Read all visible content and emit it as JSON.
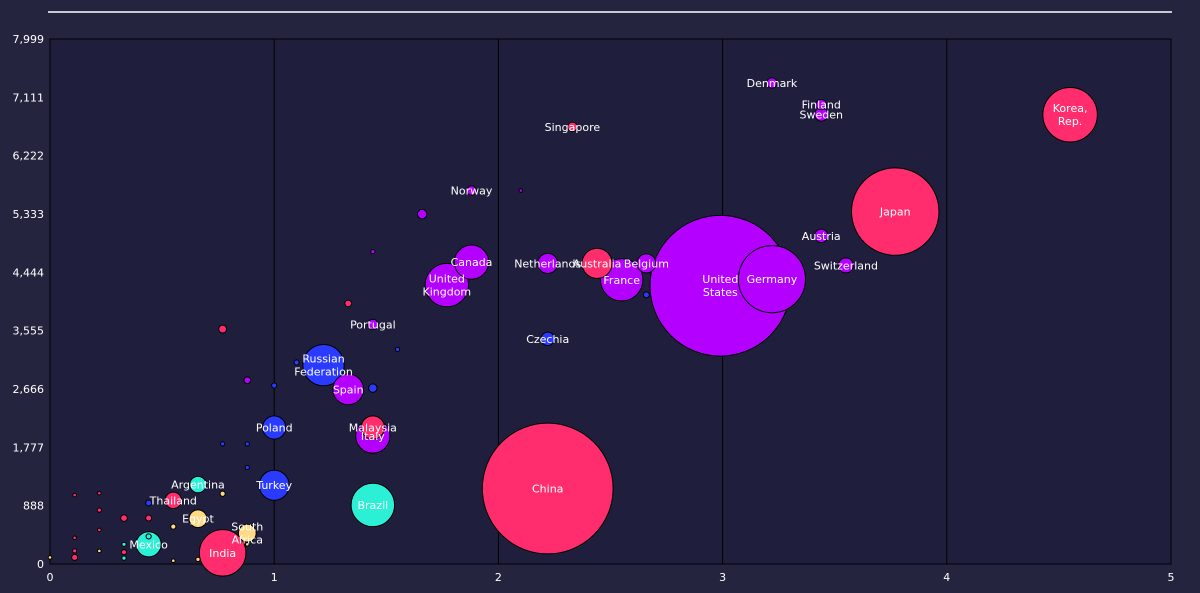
{
  "chart_data": {
    "type": "scatter",
    "title": "",
    "xlabel": "",
    "ylabel": "",
    "xlim": [
      0,
      5
    ],
    "ylim": [
      0,
      7999
    ],
    "x_ticks": [
      "0",
      "1",
      "2",
      "3",
      "4",
      "5"
    ],
    "y_ticks": [
      "0",
      "888",
      "1,777",
      "2,666",
      "3,555",
      "4,444",
      "5,333",
      "6,222",
      "7,111",
      "7,999"
    ],
    "grid": "vertical",
    "colors": {
      "background": "#24243f",
      "plot_background": "#1f1f3d",
      "line": "#ffffff",
      "magenta": "#ff2d6d",
      "purple": "#b400ff",
      "blue": "#2a3bff",
      "cyan": "#2cf0d6",
      "yellow": "#ffd983"
    },
    "points": [
      {
        "label": "Korea, Rep.",
        "x": 4.55,
        "y": 6845,
        "size": 3.3,
        "color": "#ff2d6d"
      },
      {
        "label": "Japan",
        "x": 3.77,
        "y": 5370,
        "size": 8.5,
        "color": "#ff2d6d"
      },
      {
        "label": "Denmark",
        "x": 3.22,
        "y": 7330,
        "size": 0.12,
        "color": "#b400ff"
      },
      {
        "label": "Finland",
        "x": 3.44,
        "y": 7000,
        "size": 0.12,
        "color": "#b400ff"
      },
      {
        "label": "Sweden",
        "x": 3.44,
        "y": 6850,
        "size": 0.2,
        "color": "#b400ff"
      },
      {
        "label": "Austria",
        "x": 3.44,
        "y": 5000,
        "size": 0.2,
        "color": "#b400ff"
      },
      {
        "label": "Switzerland",
        "x": 3.55,
        "y": 4550,
        "size": 0.25,
        "color": "#b400ff"
      },
      {
        "label": "Germany",
        "x": 3.22,
        "y": 4340,
        "size": 5.0,
        "color": "#b400ff"
      },
      {
        "label": "United States",
        "x": 2.99,
        "y": 4240,
        "size": 22.0,
        "color": "#b400ff"
      },
      {
        "label": "Singapore",
        "x": 2.33,
        "y": 6660,
        "size": 0.1,
        "color": "#ff2d6d"
      },
      {
        "label": "Norway",
        "x": 1.88,
        "y": 5690,
        "size": 0.1,
        "color": "#b400ff"
      },
      {
        "label": "Canada",
        "x": 1.88,
        "y": 4600,
        "size": 1.3,
        "color": "#b400ff"
      },
      {
        "label": "United Kingdom",
        "x": 1.77,
        "y": 4250,
        "size": 2.1,
        "color": "#b400ff"
      },
      {
        "label": "Netherlands",
        "x": 2.22,
        "y": 4580,
        "size": 0.45,
        "color": "#b400ff"
      },
      {
        "label": "Australia",
        "x": 2.44,
        "y": 4580,
        "size": 1.0,
        "color": "#ff2d6d"
      },
      {
        "label": "Belgium",
        "x": 2.66,
        "y": 4580,
        "size": 0.4,
        "color": "#b400ff"
      },
      {
        "label": "France",
        "x": 2.55,
        "y": 4330,
        "size": 2.0,
        "color": "#b400ff"
      },
      {
        "label": "Czechia",
        "x": 2.22,
        "y": 3430,
        "size": 0.2,
        "color": "#2a3bff"
      },
      {
        "label": "Portugal",
        "x": 1.44,
        "y": 3650,
        "size": 0.12,
        "color": "#b400ff"
      },
      {
        "label": "Russian Federation",
        "x": 1.22,
        "y": 3030,
        "size": 1.9,
        "color": "#2a3bff"
      },
      {
        "label": "Spain",
        "x": 1.33,
        "y": 2660,
        "size": 1.05,
        "color": "#b400ff"
      },
      {
        "label": "Poland",
        "x": 1.0,
        "y": 2080,
        "size": 0.6,
        "color": "#2a3bff"
      },
      {
        "label": "Italy",
        "x": 1.44,
        "y": 1950,
        "size": 1.3,
        "color": "#b400ff"
      },
      {
        "label": "Malaysia",
        "x": 1.44,
        "y": 2080,
        "size": 0.6,
        "color": "#ff2d6d"
      },
      {
        "label": "Turkey",
        "x": 1.0,
        "y": 1200,
        "size": 1.0,
        "color": "#2a3bff"
      },
      {
        "label": "Brazil",
        "x": 1.44,
        "y": 900,
        "size": 2.1,
        "color": "#2cf0d6"
      },
      {
        "label": "China",
        "x": 2.22,
        "y": 1150,
        "size": 19.0,
        "color": "#ff2d6d"
      },
      {
        "label": "Argentina",
        "x": 0.66,
        "y": 1210,
        "size": 0.3,
        "color": "#2cf0d6"
      },
      {
        "label": "Thailand",
        "x": 0.55,
        "y": 970,
        "size": 0.3,
        "color": "#ff2d6d"
      },
      {
        "label": "Egypt",
        "x": 0.66,
        "y": 690,
        "size": 0.35,
        "color": "#ffd983"
      },
      {
        "label": "South Africa",
        "x": 0.88,
        "y": 470,
        "size": 0.35,
        "color": "#ffd983"
      },
      {
        "label": "Mexico",
        "x": 0.44,
        "y": 300,
        "size": 0.7,
        "color": "#2cf0d6"
      },
      {
        "label": "India",
        "x": 0.77,
        "y": 170,
        "size": 2.4,
        "color": "#ff2d6d"
      },
      {
        "label": "",
        "x": 1.66,
        "y": 5330,
        "size": 0.1,
        "color": "#b400ff"
      },
      {
        "label": "",
        "x": 2.1,
        "y": 5690,
        "size": 0.01,
        "color": "#b400ff"
      },
      {
        "label": "",
        "x": 1.44,
        "y": 4760,
        "size": 0.02,
        "color": "#b400ff"
      },
      {
        "label": "",
        "x": 1.33,
        "y": 3970,
        "size": 0.05,
        "color": "#ff2d6d"
      },
      {
        "label": "",
        "x": 0.77,
        "y": 3580,
        "size": 0.07,
        "color": "#ff2d6d"
      },
      {
        "label": "",
        "x": 1.55,
        "y": 3270,
        "size": 0.02,
        "color": "#2a3bff"
      },
      {
        "label": "",
        "x": 1.1,
        "y": 3070,
        "size": 0.03,
        "color": "#2a3bff"
      },
      {
        "label": "",
        "x": 0.88,
        "y": 2800,
        "size": 0.05,
        "color": "#b400ff"
      },
      {
        "label": "",
        "x": 1.0,
        "y": 2720,
        "size": 0.03,
        "color": "#2a3bff"
      },
      {
        "label": "",
        "x": 1.44,
        "y": 2680,
        "size": 0.08,
        "color": "#2a3bff"
      },
      {
        "label": "",
        "x": 2.66,
        "y": 4100,
        "size": 0.04,
        "color": "#2a3bff"
      },
      {
        "label": "",
        "x": 0.77,
        "y": 1830,
        "size": 0.02,
        "color": "#2a3bff"
      },
      {
        "label": "",
        "x": 0.88,
        "y": 1830,
        "size": 0.02,
        "color": "#2a3bff"
      },
      {
        "label": "",
        "x": 0.88,
        "y": 1470,
        "size": 0.02,
        "color": "#2a3bff"
      },
      {
        "label": "",
        "x": 0.77,
        "y": 1070,
        "size": 0.03,
        "color": "#ffd983"
      },
      {
        "label": "",
        "x": 0.44,
        "y": 930,
        "size": 0.04,
        "color": "#2a3bff"
      },
      {
        "label": "",
        "x": 0.22,
        "y": 820,
        "size": 0.02,
        "color": "#ff2d6d"
      },
      {
        "label": "",
        "x": 0.33,
        "y": 700,
        "size": 0.05,
        "color": "#ff2d6d"
      },
      {
        "label": "",
        "x": 0.44,
        "y": 700,
        "size": 0.04,
        "color": "#ff2d6d"
      },
      {
        "label": "",
        "x": 0.22,
        "y": 520,
        "size": 0.01,
        "color": "#ff2d6d"
      },
      {
        "label": "",
        "x": 0.55,
        "y": 570,
        "size": 0.03,
        "color": "#ffd983"
      },
      {
        "label": "",
        "x": 0.44,
        "y": 420,
        "size": 0.03,
        "color": "#2cf0d6"
      },
      {
        "label": "",
        "x": 0.33,
        "y": 300,
        "size": 0.02,
        "color": "#2cf0d6"
      },
      {
        "label": "",
        "x": 0.33,
        "y": 180,
        "size": 0.03,
        "color": "#ff2d6d"
      },
      {
        "label": "",
        "x": 0.11,
        "y": 200,
        "size": 0.02,
        "color": "#ff2d6d"
      },
      {
        "label": "",
        "x": 0.11,
        "y": 100,
        "size": 0.04,
        "color": "#ff2d6d"
      },
      {
        "label": "",
        "x": 0.33,
        "y": 90,
        "size": 0.02,
        "color": "#2cf0d6"
      },
      {
        "label": "",
        "x": 0.66,
        "y": 70,
        "size": 0.02,
        "color": "#ffd983"
      },
      {
        "label": "",
        "x": 0.55,
        "y": 50,
        "size": 0.01,
        "color": "#ffd983"
      },
      {
        "label": "",
        "x": 0.11,
        "y": 1050,
        "size": 0.005,
        "color": "#ff2d6d"
      },
      {
        "label": "",
        "x": 0.22,
        "y": 1080,
        "size": 0.005,
        "color": "#ff2d6d"
      },
      {
        "label": "",
        "x": 0.11,
        "y": 400,
        "size": 0.005,
        "color": "#ff2d6d"
      },
      {
        "label": "",
        "x": 0.22,
        "y": 200,
        "size": 0.005,
        "color": "#ffd983"
      },
      {
        "label": "",
        "x": 0.0,
        "y": 100,
        "size": 0.005,
        "color": "#ffd983"
      },
      {
        "label": "",
        "x": 0.88,
        "y": 300,
        "size": 0.01,
        "color": "#ffd983"
      }
    ]
  }
}
